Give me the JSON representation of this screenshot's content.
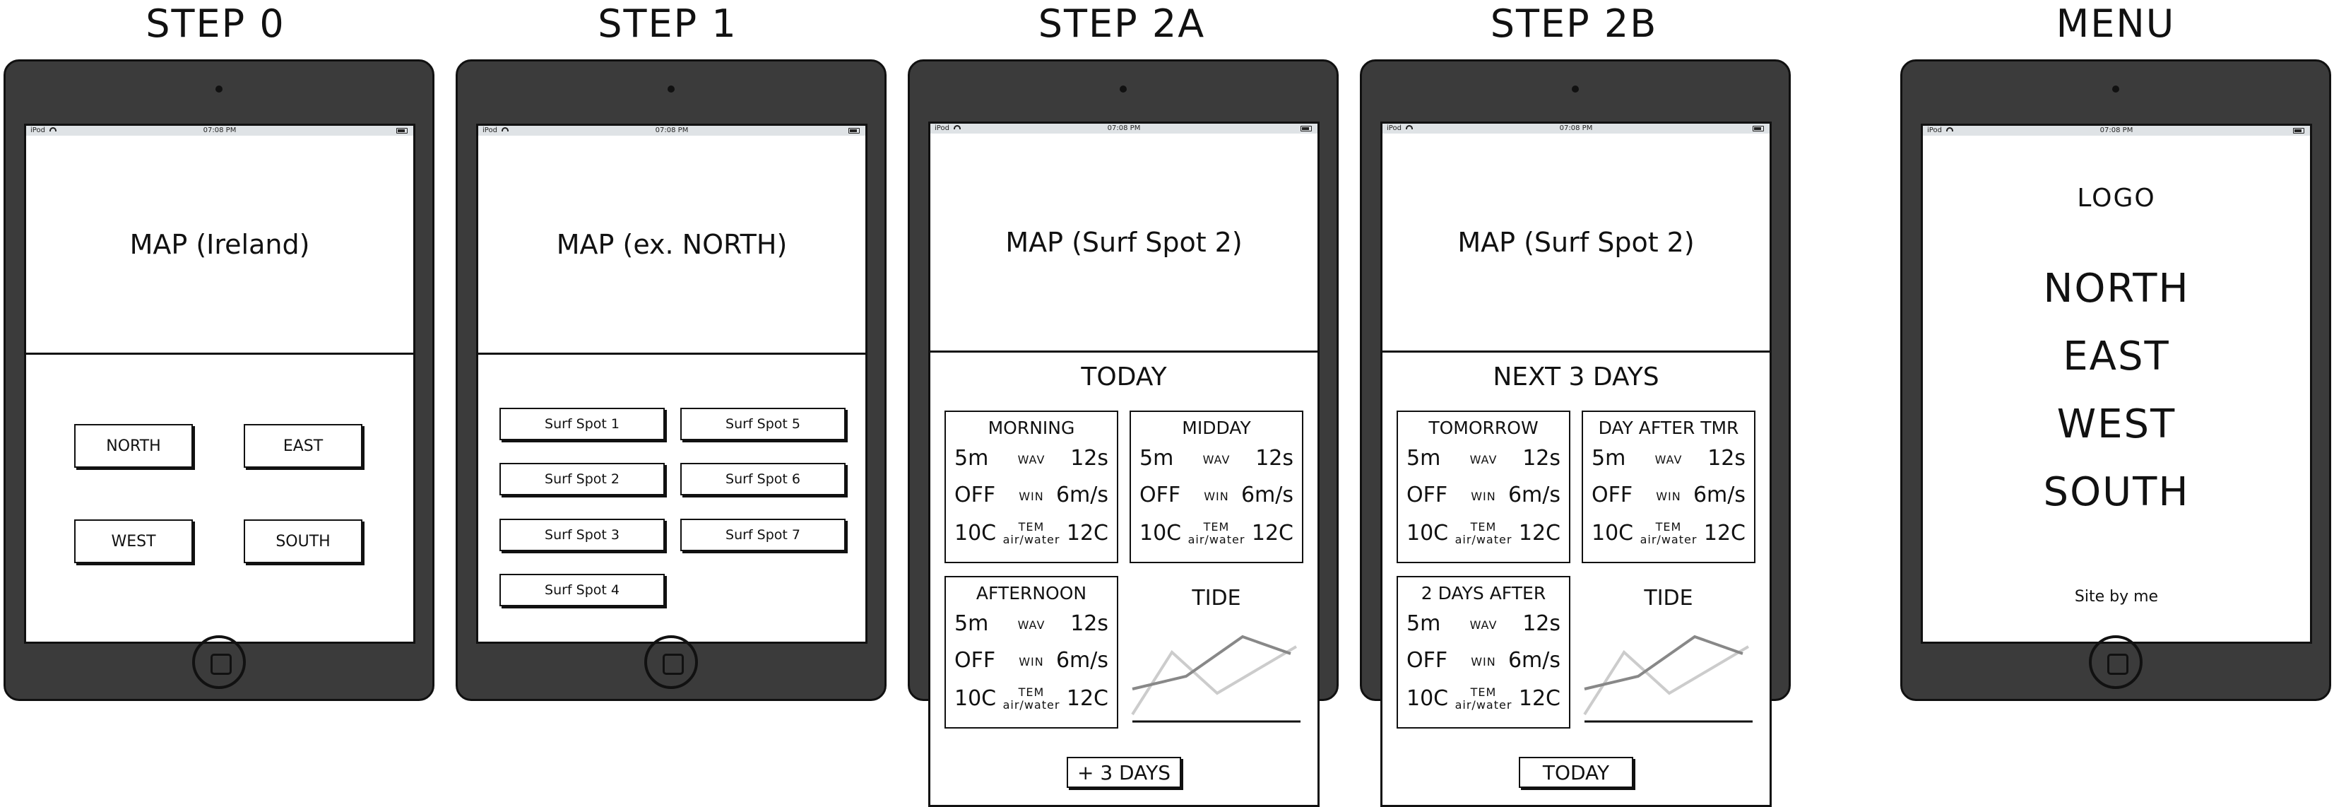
{
  "status_bar": {
    "device": "iPod",
    "time": "07:08 PM"
  },
  "step0": {
    "title": "STEP 0",
    "map_label": "MAP (Ireland)",
    "buttons": [
      "NORTH",
      "EAST",
      "WEST",
      "SOUTH"
    ]
  },
  "step1": {
    "title": "STEP 1",
    "map_label": "MAP (ex. NORTH)",
    "spots": [
      "Surf Spot 1",
      "Surf Spot 2",
      "Surf Spot 3",
      "Surf Spot 4",
      "Surf Spot 5",
      "Surf Spot 6",
      "Surf Spot 7"
    ]
  },
  "step2a": {
    "title": "STEP 2A",
    "map_label": "MAP (Surf Spot 2)",
    "section_title": "TODAY",
    "cards": [
      {
        "title": "MORNING",
        "wave": "5m",
        "wave_label": "WAV",
        "period": "12s",
        "wind_dir": "OFF",
        "wind_label": "WIN",
        "wind_speed": "6m/s",
        "air": "10C",
        "temp_label": "TEM",
        "temp_sub": "air/water",
        "water": "12C"
      },
      {
        "title": "MIDDAY",
        "wave": "5m",
        "wave_label": "WAV",
        "period": "12s",
        "wind_dir": "OFF",
        "wind_label": "WIN",
        "wind_speed": "6m/s",
        "air": "10C",
        "temp_label": "TEM",
        "temp_sub": "air/water",
        "water": "12C"
      },
      {
        "title": "AFTERNOON",
        "wave": "5m",
        "wave_label": "WAV",
        "period": "12s",
        "wind_dir": "OFF",
        "wind_label": "WIN",
        "wind_speed": "6m/s",
        "air": "10C",
        "temp_label": "TEM",
        "temp_sub": "air/water",
        "water": "12C"
      }
    ],
    "tide_label": "TIDE",
    "button": "+ 3 DAYS"
  },
  "step2b": {
    "title": "STEP 2B",
    "map_label": "MAP (Surf Spot 2)",
    "section_title": "NEXT 3 DAYS",
    "cards": [
      {
        "title": "TOMORROW",
        "wave": "5m",
        "wave_label": "WAV",
        "period": "12s",
        "wind_dir": "OFF",
        "wind_label": "WIN",
        "wind_speed": "6m/s",
        "air": "10C",
        "temp_label": "TEM",
        "temp_sub": "air/water",
        "water": "12C"
      },
      {
        "title": "DAY AFTER TMR",
        "wave": "5m",
        "wave_label": "WAV",
        "period": "12s",
        "wind_dir": "OFF",
        "wind_label": "WIN",
        "wind_speed": "6m/s",
        "air": "10C",
        "temp_label": "TEM",
        "temp_sub": "air/water",
        "water": "12C"
      },
      {
        "title": "2 DAYS AFTER",
        "wave": "5m",
        "wave_label": "WAV",
        "period": "12s",
        "wind_dir": "OFF",
        "wind_label": "WIN",
        "wind_speed": "6m/s",
        "air": "10C",
        "temp_label": "TEM",
        "temp_sub": "air/water",
        "water": "12C"
      }
    ],
    "tide_label": "TIDE",
    "button": "TODAY"
  },
  "menu": {
    "title": "MENU",
    "logo": "LOGO",
    "items": [
      "NORTH",
      "EAST",
      "WEST",
      "SOUTH"
    ],
    "footer": "Site by me"
  },
  "colors": {
    "device_body": "#3b3b3b",
    "status_bar": "#dfe3e6",
    "ink": "#111111",
    "tide_dark": "#888888",
    "tide_light": "#cccccc"
  }
}
